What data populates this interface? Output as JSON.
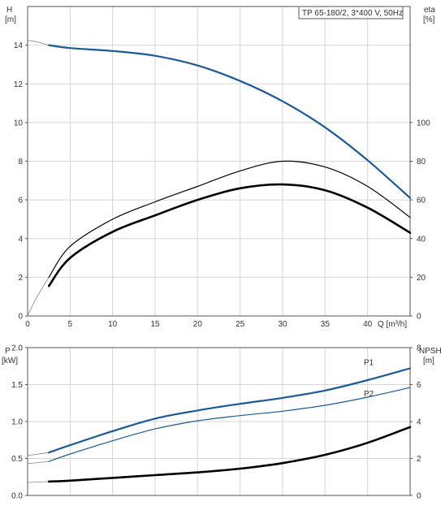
{
  "chart_data": [
    {
      "type": "line",
      "title": "TP 65-180/2, 3*400 V, 50Hz",
      "xlabel": "Q [m³/h]",
      "x_ticks": [
        "0",
        "5",
        "10",
        "15",
        "20",
        "25",
        "30",
        "35",
        "40"
      ],
      "xlim": [
        0,
        45
      ],
      "y_left": {
        "label_line1": "H",
        "label_line2": "[m]",
        "ylim": [
          0,
          16
        ],
        "ticks": [
          "0",
          "2",
          "4",
          "6",
          "8",
          "10",
          "12",
          "14"
        ]
      },
      "y_right": {
        "label_line1": "eta",
        "label_line2": "[%]",
        "ylim": [
          0,
          160
        ],
        "ticks": [
          "0",
          "20",
          "40",
          "60",
          "80",
          "100"
        ]
      },
      "grid": true,
      "series": [
        {
          "name": "H",
          "axis": "left",
          "color": "#1a5a9a",
          "x": [
            2.5,
            5,
            10,
            15,
            20,
            25,
            30,
            35,
            40,
            45
          ],
          "y": [
            14.0,
            13.85,
            13.7,
            13.45,
            12.95,
            12.15,
            11.1,
            9.75,
            8.05,
            6.1
          ],
          "extrapolated_x": [
            0,
            1,
            2.5
          ],
          "extrapolated_y": [
            14.25,
            14.18,
            14.0
          ]
        },
        {
          "name": "eta",
          "axis": "right",
          "color": "#000000",
          "x": [
            2.5,
            5,
            10,
            15,
            20,
            25,
            30,
            35,
            40,
            45
          ],
          "y": [
            20,
            36,
            50,
            59,
            67,
            75,
            80,
            77,
            67,
            51
          ],
          "extrapolated_x": [
            0,
            1,
            2.5
          ],
          "extrapolated_y": [
            0,
            9,
            20
          ]
        },
        {
          "name": "eta_thick",
          "axis": "right",
          "color": "#000000",
          "x": [
            2.5,
            5,
            10,
            15,
            20,
            25,
            30,
            35,
            40,
            45
          ],
          "y": [
            15.5,
            30,
            43.5,
            52,
            60,
            66,
            68,
            65,
            56,
            43
          ]
        }
      ]
    },
    {
      "type": "line",
      "xlim": [
        0,
        45
      ],
      "y_left": {
        "label_line1": "P",
        "label_line2": "[kW]",
        "ylim": [
          0,
          2.0
        ],
        "ticks": [
          "0.0",
          "0.5",
          "1.0",
          "1.5",
          "2.0"
        ]
      },
      "y_right": {
        "label_line1": "NPSH",
        "label_line2": "[m]",
        "ylim": [
          0,
          8
        ],
        "ticks": [
          "0",
          "2",
          "4",
          "6",
          "8"
        ]
      },
      "grid": true,
      "series": [
        {
          "name": "P1",
          "axis": "left",
          "color": "#1a5a9a",
          "x": [
            2.5,
            5,
            10,
            15,
            20,
            25,
            30,
            35,
            40,
            45
          ],
          "y": [
            0.58,
            0.68,
            0.87,
            1.04,
            1.15,
            1.24,
            1.32,
            1.42,
            1.56,
            1.72
          ],
          "extrapolated_x": [
            0,
            2.5
          ],
          "extrapolated_y": [
            0.54,
            0.58
          ]
        },
        {
          "name": "P2",
          "axis": "left",
          "color": "#1a5a9a",
          "x": [
            2.5,
            5,
            10,
            15,
            20,
            25,
            30,
            35,
            40,
            45
          ],
          "y": [
            0.46,
            0.56,
            0.74,
            0.9,
            1.01,
            1.08,
            1.14,
            1.22,
            1.33,
            1.46
          ],
          "extrapolated_x": [
            0,
            2.5
          ],
          "extrapolated_y": [
            0.43,
            0.46
          ]
        },
        {
          "name": "NPSH",
          "axis": "right",
          "color": "#000000",
          "x": [
            2.5,
            5,
            10,
            15,
            20,
            25,
            30,
            35,
            40,
            45
          ],
          "y": [
            0.75,
            0.8,
            0.95,
            1.1,
            1.25,
            1.45,
            1.75,
            2.2,
            2.85,
            3.7
          ],
          "extrapolated_x": [
            0,
            2.5
          ],
          "extrapolated_y": [
            0.7,
            0.75
          ]
        }
      ]
    }
  ]
}
